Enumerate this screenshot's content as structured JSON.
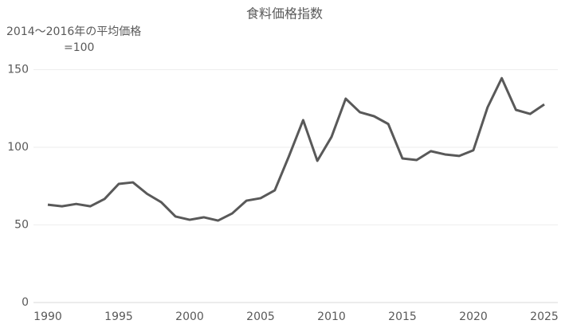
{
  "chart_data": {
    "type": "line",
    "title": "食料価格指数",
    "y_label": [
      "2014～2016年の平均価格",
      "=100"
    ],
    "x": [
      1990,
      1991,
      1992,
      1993,
      1994,
      1995,
      1996,
      1997,
      1998,
      1999,
      2000,
      2001,
      2002,
      2003,
      2004,
      2005,
      2006,
      2007,
      2008,
      2009,
      2010,
      2011,
      2012,
      2013,
      2014,
      2015,
      2016,
      2017,
      2018,
      2019,
      2020,
      2021,
      2022,
      2023,
      2024,
      2025
    ],
    "values": [
      63,
      62,
      63.5,
      62,
      66.7,
      76.4,
      77.4,
      70,
      64.6,
      55.4,
      53.3,
      54.9,
      52.8,
      57.4,
      65.6,
      67.2,
      72.3,
      94.3,
      117.5,
      91.3,
      106.7,
      131.3,
      122.6,
      120,
      115,
      92.8,
      91.8,
      97.5,
      95.4,
      94.4,
      98.1,
      125.7,
      144.5,
      124.1,
      121.5,
      127.6
    ],
    "color": "#595959",
    "xlim": [
      1990,
      2025
    ],
    "xticks": [
      1990,
      1995,
      2000,
      2005,
      2010,
      2015,
      2020,
      2025
    ],
    "ylim": [
      0,
      160
    ],
    "yticks": [
      0,
      50,
      100,
      150
    ],
    "grid": true
  }
}
